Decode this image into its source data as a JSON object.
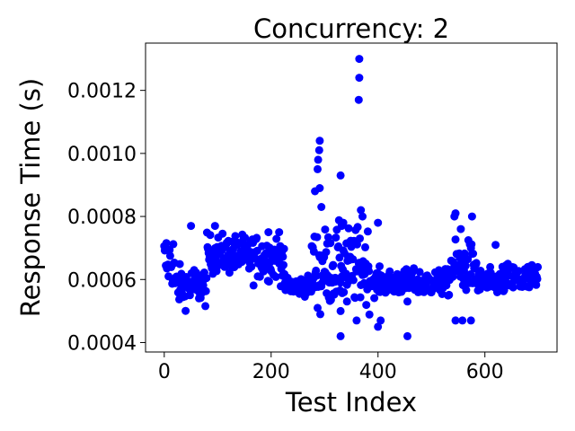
{
  "chart_data": {
    "type": "scatter",
    "title": "Concurrency: 2",
    "xlabel": "Test Index",
    "ylabel": "Response Time (s)",
    "xlim": [
      -35,
      735
    ],
    "ylim": [
      0.00037,
      0.00135
    ],
    "xticks": [
      {
        "value": 0,
        "label": "0"
      },
      {
        "value": 200,
        "label": "200"
      },
      {
        "value": 400,
        "label": "400"
      },
      {
        "value": 600,
        "label": "600"
      }
    ],
    "yticks": [
      {
        "value": 0.0004,
        "label": "0.0004"
      },
      {
        "value": 0.0006,
        "label": "0.0006"
      },
      {
        "value": 0.0008,
        "label": "0.0008"
      },
      {
        "value": 0.001,
        "label": "0.0010"
      },
      {
        "value": 0.0012,
        "label": "0.0012"
      }
    ],
    "grid": false,
    "marker_color": "#0000ff",
    "points_count": 700,
    "series": [
      {
        "segments": [
          {
            "from": 0,
            "to": 20,
            "base": 0.00066,
            "spread": 4.5e-05
          },
          {
            "from": 20,
            "to": 80,
            "base": 0.00058,
            "spread": 3e-05
          },
          {
            "from": 80,
            "to": 150,
            "base": 0.00068,
            "spread": 3e-05
          },
          {
            "from": 150,
            "to": 225,
            "base": 0.00067,
            "spread": 3.5e-05
          },
          {
            "from": 225,
            "to": 275,
            "base": 0.00058,
            "spread": 1.5e-05
          },
          {
            "from": 275,
            "to": 385,
            "base": 0.00064,
            "spread": 6e-05
          },
          {
            "from": 385,
            "to": 460,
            "base": 0.00059,
            "spread": 2e-05
          },
          {
            "from": 460,
            "to": 535,
            "base": 0.00059,
            "spread": 2e-05
          },
          {
            "from": 535,
            "to": 585,
            "base": 0.00064,
            "spread": 4e-05
          },
          {
            "from": 585,
            "to": 630,
            "base": 0.00059,
            "spread": 2e-05
          },
          {
            "from": 630,
            "to": 700,
            "base": 0.0006,
            "spread": 2.5e-05
          }
        ],
        "outliers": [
          {
            "x": 365,
            "y": 0.0013
          },
          {
            "x": 365,
            "y": 0.00124
          },
          {
            "x": 364,
            "y": 0.00117
          },
          {
            "x": 291,
            "y": 0.00104
          },
          {
            "x": 290,
            "y": 0.00101
          },
          {
            "x": 288,
            "y": 0.00098
          },
          {
            "x": 287,
            "y": 0.00095
          },
          {
            "x": 291,
            "y": 0.00089
          },
          {
            "x": 282,
            "y": 0.00088
          },
          {
            "x": 294,
            "y": 0.00083
          },
          {
            "x": 330,
            "y": 0.00093
          },
          {
            "x": 368,
            "y": 0.00082
          },
          {
            "x": 371,
            "y": 0.0008
          },
          {
            "x": 335,
            "y": 0.00078
          },
          {
            "x": 332,
            "y": 0.00077
          },
          {
            "x": 400,
            "y": 0.00078
          },
          {
            "x": 545,
            "y": 0.00081
          },
          {
            "x": 543,
            "y": 0.0008
          },
          {
            "x": 576,
            "y": 0.0008
          },
          {
            "x": 555,
            "y": 0.00076
          },
          {
            "x": 50,
            "y": 0.00077
          },
          {
            "x": 95,
            "y": 0.00077
          },
          {
            "x": 195,
            "y": 0.00075
          },
          {
            "x": 215,
            "y": 0.00075
          },
          {
            "x": 620,
            "y": 0.00071
          },
          {
            "x": 330,
            "y": 0.00042
          },
          {
            "x": 455,
            "y": 0.00042
          },
          {
            "x": 400,
            "y": 0.00045
          },
          {
            "x": 405,
            "y": 0.00047
          },
          {
            "x": 545,
            "y": 0.00047
          },
          {
            "x": 558,
            "y": 0.00047
          },
          {
            "x": 574,
            "y": 0.00047
          },
          {
            "x": 292,
            "y": 0.00049
          },
          {
            "x": 330,
            "y": 0.0005
          },
          {
            "x": 342,
            "y": 0.00053
          },
          {
            "x": 455,
            "y": 0.00053
          },
          {
            "x": 360,
            "y": 0.00047
          }
        ]
      }
    ]
  }
}
